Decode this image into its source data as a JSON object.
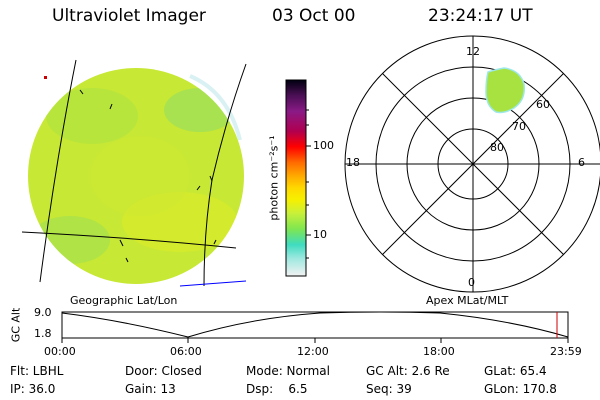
{
  "header": {
    "title": "Ultraviolet Imager",
    "date": "03 Oct 00",
    "time": "23:24:17 UT"
  },
  "colorbar": {
    "unit_label": "photon cm⁻²s⁻¹",
    "ticks": [
      "100",
      "10"
    ]
  },
  "left_panel": {
    "caption": "Geographic Lat/Lon"
  },
  "right_panel": {
    "caption": "Apex MLat/MLT",
    "mlt_labels": {
      "top": "12",
      "left": "18",
      "right": "6",
      "bottom": "0"
    },
    "mlat_labels": [
      "60",
      "70",
      "80"
    ]
  },
  "altitude_strip": {
    "ylabel": "GC Alt",
    "yticks": [
      "9.0",
      "1.8"
    ],
    "xticks": [
      "00:00",
      "06:00",
      "12:00",
      "18:00",
      "23:59"
    ]
  },
  "footer": {
    "flt": "Flt: LBHL",
    "door": "Door: Closed",
    "mode": "Mode: Normal",
    "gc_alt": "GC Alt: 2.6 Re",
    "glat": "GLat: 65.4",
    "ip": "IP: 36.0",
    "gain": "Gain: 13",
    "dsp": "Dsp:    6.5",
    "seq": "Seq: 39",
    "glon": "GLon: 170.8"
  },
  "colors": {
    "disk": "#c7e835",
    "cap": "#a8e240",
    "colorbar_stops": [
      "#000010",
      "#4b0f55",
      "#8a1a86",
      "#b00050",
      "#ff0000",
      "#ff6a00",
      "#ffaa00",
      "#ffd800",
      "#f6f000",
      "#c9f03a",
      "#7fe650",
      "#3fdcc0",
      "#9ee8e0",
      "#f2f2f2"
    ]
  }
}
